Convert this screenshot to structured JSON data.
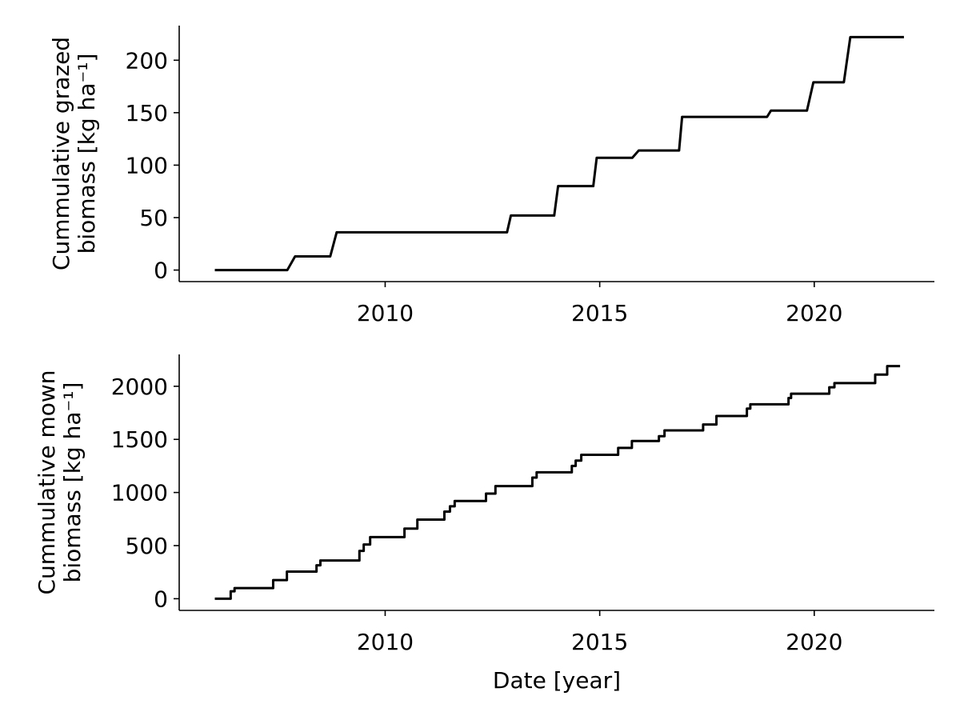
{
  "chart_data": [
    {
      "type": "line",
      "ylabel": [
        "Cummulative grazed",
        "biomass [kg ha⁻¹]"
      ],
      "x": [
        2006.03,
        2007.72,
        2007.9,
        2008.72,
        2008.87,
        2012.84,
        2012.93,
        2013.94,
        2014.03,
        2014.85,
        2014.93,
        2015.76,
        2015.91,
        2016.85,
        2016.92,
        2018.9,
        2018.99,
        2019.83,
        2019.98,
        2020.69,
        2020.84,
        2022.09
      ],
      "values": [
        0,
        0,
        13,
        13,
        36,
        36,
        52,
        52,
        80,
        80,
        107,
        107,
        114,
        114,
        146,
        146,
        152,
        152,
        179,
        179,
        222,
        222
      ],
      "color": "#000000",
      "xlim": [
        2005.2,
        2022.8
      ],
      "xticks": [
        2010,
        2015,
        2020
      ],
      "ylim": [
        -11,
        233
      ],
      "yticks": [
        0,
        50,
        100,
        150,
        200
      ]
    },
    {
      "type": "line",
      "ylabel": [
        "Cummulative mown",
        "biomass [kg ha⁻¹]"
      ],
      "xlabel": "Date [year]",
      "x": [
        2006.03,
        2006.4,
        2006.4,
        2006.49,
        2006.49,
        2007.39,
        2007.39,
        2007.71,
        2007.71,
        2008.4,
        2008.4,
        2008.49,
        2008.49,
        2009.4,
        2009.4,
        2009.5,
        2009.5,
        2009.65,
        2009.65,
        2010.45,
        2010.45,
        2010.75,
        2010.75,
        2011.38,
        2011.38,
        2011.51,
        2011.51,
        2011.62,
        2011.62,
        2012.35,
        2012.35,
        2012.57,
        2012.57,
        2013.43,
        2013.43,
        2013.53,
        2013.53,
        2014.35,
        2014.35,
        2014.44,
        2014.44,
        2014.57,
        2014.57,
        2015.43,
        2015.43,
        2015.75,
        2015.75,
        2016.38,
        2016.38,
        2016.51,
        2016.51,
        2017.41,
        2017.41,
        2017.72,
        2017.72,
        2018.43,
        2018.43,
        2018.51,
        2018.51,
        2019.4,
        2019.4,
        2019.46,
        2019.46,
        2020.35,
        2020.35,
        2020.47,
        2020.47,
        2021.42,
        2021.42,
        2021.7,
        2021.7,
        2022.0
      ],
      "values": [
        0,
        0,
        70,
        70,
        100,
        100,
        175,
        175,
        255,
        255,
        315,
        315,
        360,
        360,
        450,
        450,
        510,
        510,
        580,
        580,
        660,
        660,
        745,
        745,
        820,
        820,
        870,
        870,
        920,
        920,
        990,
        990,
        1060,
        1060,
        1140,
        1140,
        1190,
        1190,
        1250,
        1250,
        1300,
        1300,
        1355,
        1355,
        1420,
        1420,
        1485,
        1485,
        1530,
        1530,
        1585,
        1585,
        1640,
        1640,
        1720,
        1720,
        1790,
        1790,
        1830,
        1830,
        1890,
        1890,
        1930,
        1930,
        1990,
        1990,
        2030,
        2030,
        2110,
        2110,
        2190,
        2190
      ],
      "color": "#000000",
      "xlim": [
        2005.2,
        2022.8
      ],
      "xticks": [
        2010,
        2015,
        2020
      ],
      "ylim": [
        -110,
        2300
      ],
      "yticks": [
        0,
        500,
        1000,
        1500,
        2000
      ]
    }
  ]
}
